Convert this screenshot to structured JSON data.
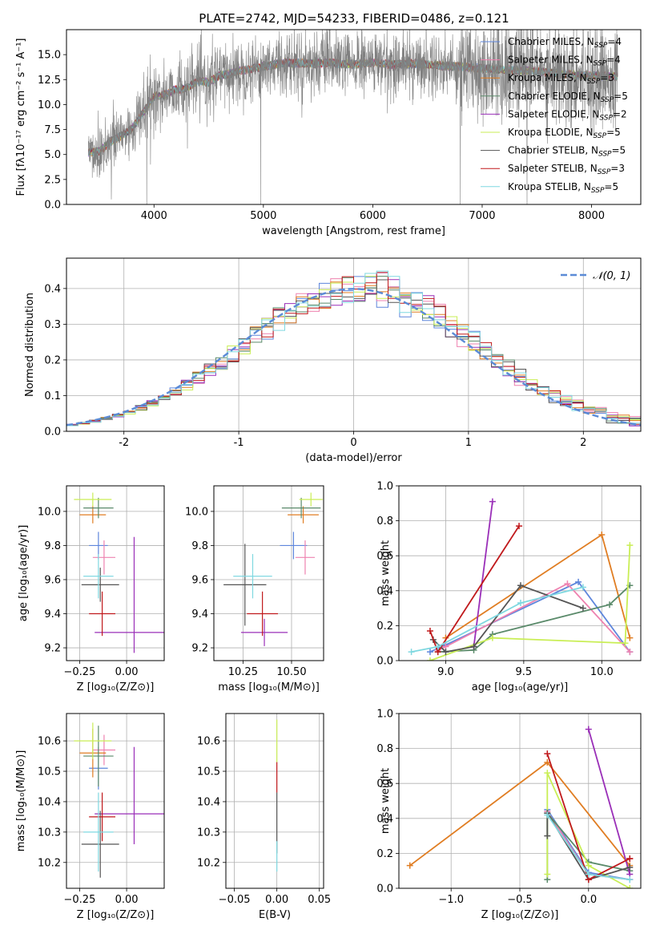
{
  "figure": {
    "title": "PLATE=2742, MJD=54233, FIBERID=0486, z=0.121",
    "background": "#ffffff",
    "grid_color": "#b0b0b0"
  },
  "colors": {
    "chabrier_miles": "#5e86dc",
    "salpeter_miles": "#ee82b0",
    "kroupa_miles": "#e07d22",
    "chabrier_elodie": "#5a8a6a",
    "salpeter_elodie": "#9a2fb8",
    "kroupa_elodie": "#c9ee55",
    "chabrier_stelib": "#555555",
    "salpeter_stelib": "#c0191c",
    "kroupa_stelib": "#7fd8e0",
    "spectrum": "#808080",
    "gaussian": "#5b8bd6"
  },
  "chart_data": [
    {
      "id": "spectrum",
      "type": "line",
      "xlabel": "wavelength [Angstrom, rest frame]",
      "ylabel": "Flux [fλ10⁻¹⁷ erg cm⁻² s⁻¹ A⁻¹]",
      "xlim": [
        3200,
        8450
      ],
      "ylim": [
        0,
        17.5
      ],
      "xticks": [
        4000,
        5000,
        6000,
        7000,
        8000
      ],
      "yticks": [
        0.0,
        2.5,
        5.0,
        7.5,
        10.0,
        12.5,
        15.0
      ],
      "grid": false,
      "legend_position": "upper right",
      "data_continuum": {
        "x": [
          3400,
          3500,
          3600,
          3700,
          3800,
          3900,
          4000,
          4100,
          4200,
          4300,
          4400,
          4500,
          4600,
          4700,
          4800,
          4900,
          5000,
          5200,
          5400,
          5600,
          5800,
          6000,
          6200,
          6400,
          6600,
          6800,
          7000,
          7200,
          7400,
          7600,
          7800,
          8000,
          8200
        ],
        "y": [
          5.2,
          5.3,
          6.3,
          6.9,
          7.6,
          9.2,
          10.8,
          11.0,
          11.5,
          11.6,
          12.4,
          12.2,
          12.9,
          13.1,
          13.4,
          13.6,
          13.8,
          14.2,
          14.1,
          14.2,
          14.0,
          14.2,
          14.0,
          14.1,
          13.9,
          13.8,
          13.6,
          13.5,
          13.4,
          13.2,
          13.0,
          12.9,
          12.8
        ]
      },
      "data_noise_amplitude": 1.6,
      "data_dips": [
        [
          3934,
          0
        ],
        [
          4975,
          0
        ],
        [
          6800,
          0
        ],
        [
          7410,
          0
        ],
        [
          3610,
          0.5
        ],
        [
          4305,
          5.6
        ],
        [
          3968,
          4.0
        ]
      ],
      "legend": [
        {
          "label": "Chabrier MILES, N",
          "sub": "SSP",
          "value": "=4",
          "color_key": "chabrier_miles"
        },
        {
          "label": "Salpeter MILES, N",
          "sub": "SSP",
          "value": "=4",
          "color_key": "salpeter_miles"
        },
        {
          "label": "Kroupa MILES, N",
          "sub": "SSP",
          "value": "=3",
          "color_key": "kroupa_miles"
        },
        {
          "label": "Chabrier ELODIE, N",
          "sub": "SSP",
          "value": "=5",
          "color_key": "chabrier_elodie"
        },
        {
          "label": "Salpeter ELODIE, N",
          "sub": "SSP",
          "value": "=2",
          "color_key": "salpeter_elodie"
        },
        {
          "label": "Kroupa ELODIE, N",
          "sub": "SSP",
          "value": "=5",
          "color_key": "kroupa_elodie"
        },
        {
          "label": "Chabrier STELIB, N",
          "sub": "SSP",
          "value": "=5",
          "color_key": "chabrier_stelib"
        },
        {
          "label": "Salpeter STELIB, N",
          "sub": "SSP",
          "value": "=3",
          "color_key": "salpeter_stelib"
        },
        {
          "label": "Kroupa STELIB, N",
          "sub": "SSP",
          "value": "=5",
          "color_key": "kroupa_stelib"
        }
      ]
    },
    {
      "id": "residual_histogram",
      "type": "line",
      "xlabel": "(data-model)/error",
      "ylabel": "Normed distribution",
      "xlim": [
        -2.5,
        2.5
      ],
      "ylim": [
        0,
        0.485
      ],
      "xticks": [
        -2,
        -1,
        0,
        1,
        2
      ],
      "yticks": [
        0.0,
        0.1,
        0.2,
        0.3,
        0.4
      ],
      "grid": true,
      "legend_position": "upper right",
      "legend_label": "𝒩(0, 1)",
      "gaussian": {
        "mean": 0,
        "sigma": 1
      },
      "bin_width": 0.1
    },
    {
      "id": "age_vs_Z",
      "type": "scatter",
      "xlabel": "Z [log₁₀(Z/Z⊙)]",
      "ylabel": "age  [log₁₀(age/yr)]",
      "xlim": [
        -0.32,
        0.2
      ],
      "ylim": [
        9.125,
        10.15
      ],
      "xticks": [
        -0.25,
        0.0
      ],
      "xticklabels": [
        "−0.25",
        "0.00"
      ],
      "yticks": [
        9.2,
        9.4,
        9.6,
        9.8,
        10.0
      ],
      "grid": true,
      "points": [
        {
          "key": "chabrier_miles",
          "x": -0.15,
          "xerr": 0.05,
          "y": 9.8,
          "yerr": 0.08
        },
        {
          "key": "salpeter_miles",
          "x": -0.12,
          "xerr": 0.06,
          "y": 9.73,
          "yerr": 0.1
        },
        {
          "key": "kroupa_miles",
          "x": -0.18,
          "xerr": 0.07,
          "y": 9.98,
          "yerr": 0.05
        },
        {
          "key": "chabrier_elodie",
          "x": -0.15,
          "xerr": 0.08,
          "y": 10.02,
          "yerr": 0.06
        },
        {
          "key": "salpeter_elodie",
          "x": 0.03,
          "xerr": 0.2,
          "y": 9.29,
          "yerr": 0.0
        },
        {
          "key": "kroupa_elodie",
          "x": -0.18,
          "xerr": 0.1,
          "y": 10.07,
          "yerr": 0.04
        },
        {
          "key": "chabrier_stelib",
          "x": -0.14,
          "xerr": 0.1,
          "y": 9.57,
          "yerr": 0.1
        },
        {
          "key": "salpeter_stelib",
          "x": -0.13,
          "xerr": 0.07,
          "y": 9.4,
          "yerr": 0.13
        },
        {
          "key": "kroupa_stelib",
          "x": -0.15,
          "xerr": 0.08,
          "y": 9.62,
          "yerr": 0.13
        },
        {
          "key": "salpeter_elodie",
          "x": 0.04,
          "xerr": 0.0,
          "y": 9.51,
          "yerr": 0.34
        }
      ]
    },
    {
      "id": "age_vs_mass",
      "type": "scatter",
      "xlabel": "mass [log₁₀(M/M⊙)]",
      "ylabel": "",
      "xlim": [
        10.1,
        10.665
      ],
      "ylim": [
        9.125,
        10.15
      ],
      "xticks": [
        10.25,
        10.5
      ],
      "xticklabels": [
        "10.25",
        "10.50"
      ],
      "yticks": [
        9.2,
        9.4,
        9.6,
        9.8,
        10.0
      ],
      "grid": true,
      "points": [
        {
          "key": "chabrier_miles",
          "x": 10.51,
          "xerr": 0.07,
          "y": 9.8,
          "yerr": 0.08
        },
        {
          "key": "salpeter_miles",
          "x": 10.57,
          "xerr": 0.05,
          "y": 9.73,
          "yerr": 0.1
        },
        {
          "key": "kroupa_miles",
          "x": 10.56,
          "xerr": 0.08,
          "y": 9.98,
          "yerr": 0.05
        },
        {
          "key": "chabrier_elodie",
          "x": 10.55,
          "xerr": 0.1,
          "y": 10.02,
          "yerr": 0.06
        },
        {
          "key": "salpeter_elodie",
          "x": 10.36,
          "xerr": 0.12,
          "y": 9.29,
          "yerr": 0.08
        },
        {
          "key": "kroupa_elodie",
          "x": 10.6,
          "xerr": 0.06,
          "y": 10.07,
          "yerr": 0.04
        },
        {
          "key": "chabrier_stelib",
          "x": 10.26,
          "xerr": 0.11,
          "y": 9.57,
          "yerr": 0.24
        },
        {
          "key": "salpeter_stelib",
          "x": 10.35,
          "xerr": 0.08,
          "y": 9.4,
          "yerr": 0.13
        },
        {
          "key": "kroupa_stelib",
          "x": 10.3,
          "xerr": 0.1,
          "y": 9.62,
          "yerr": 0.13
        }
      ]
    },
    {
      "id": "weight_vs_age",
      "type": "line",
      "xlabel": "age  [log₁₀(age/yr)]",
      "ylabel": "mass weight",
      "xlim": [
        8.7,
        10.25
      ],
      "ylim": [
        0,
        1.0
      ],
      "xticks": [
        9.0,
        9.5,
        10.0
      ],
      "yticks": [
        0.0,
        0.2,
        0.4,
        0.6,
        0.8,
        1.0
      ],
      "grid": true,
      "series": [
        {
          "key": "chabrier_miles",
          "x": [
            8.9,
            9.0,
            9.85,
            10.18
          ],
          "y": [
            0.05,
            0.09,
            0.45,
            0.05
          ]
        },
        {
          "key": "salpeter_miles",
          "x": [
            8.95,
            9.0,
            9.78,
            10.18
          ],
          "y": [
            0.06,
            0.08,
            0.44,
            0.05
          ]
        },
        {
          "key": "kroupa_miles",
          "x": [
            9.0,
            10.0,
            10.18
          ],
          "y": [
            0.13,
            0.72,
            0.13
          ]
        },
        {
          "key": "chabrier_elodie",
          "x": [
            8.95,
            9.18,
            9.3,
            10.05,
            10.18
          ],
          "y": [
            0.05,
            0.06,
            0.15,
            0.32,
            0.43
          ]
        },
        {
          "key": "salpeter_elodie",
          "x": [
            9.18,
            9.3
          ],
          "y": [
            0.08,
            0.91
          ]
        },
        {
          "key": "kroupa_elodie",
          "x": [
            8.9,
            9.3,
            10.15,
            10.18
          ],
          "y": [
            0.0,
            0.13,
            0.1,
            0.66
          ]
        },
        {
          "key": "chabrier_stelib",
          "x": [
            8.92,
            9.0,
            9.18,
            9.48,
            9.88
          ],
          "y": [
            0.12,
            0.05,
            0.08,
            0.43,
            0.3
          ]
        },
        {
          "key": "salpeter_stelib",
          "x": [
            8.9,
            8.95,
            9.47
          ],
          "y": [
            0.17,
            0.05,
            0.77
          ]
        },
        {
          "key": "kroupa_stelib",
          "x": [
            8.78,
            8.95,
            9.48,
            9.88
          ],
          "y": [
            0.05,
            0.08,
            0.33,
            0.42
          ]
        }
      ]
    },
    {
      "id": "mass_vs_Z",
      "type": "scatter",
      "xlabel": "Z [log₁₀(Z/Z⊙)]",
      "ylabel": "mass [log₁₀(M/M⊙)]",
      "xlim": [
        -0.32,
        0.2
      ],
      "ylim": [
        10.115,
        10.69
      ],
      "xticks": [
        -0.25,
        0.0
      ],
      "xticklabels": [
        "−0.25",
        "0.00"
      ],
      "yticks": [
        10.2,
        10.3,
        10.4,
        10.5,
        10.6
      ],
      "grid": true,
      "points": [
        {
          "key": "chabrier_miles",
          "x": -0.15,
          "xerr": 0.05,
          "y": 10.51,
          "yerr": 0.07
        },
        {
          "key": "salpeter_miles",
          "x": -0.12,
          "xerr": 0.06,
          "y": 10.57,
          "yerr": 0.05
        },
        {
          "key": "kroupa_miles",
          "x": -0.18,
          "xerr": 0.07,
          "y": 10.56,
          "yerr": 0.08
        },
        {
          "key": "chabrier_elodie",
          "x": -0.15,
          "xerr": 0.08,
          "y": 10.55,
          "yerr": 0.1
        },
        {
          "key": "salpeter_elodie",
          "x": 0.03,
          "xerr": 0.2,
          "y": 10.36,
          "yerr": 0.0
        },
        {
          "key": "kroupa_elodie",
          "x": -0.18,
          "xerr": 0.1,
          "y": 10.6,
          "yerr": 0.06
        },
        {
          "key": "chabrier_stelib",
          "x": -0.14,
          "xerr": 0.1,
          "y": 10.26,
          "yerr": 0.11
        },
        {
          "key": "salpeter_stelib",
          "x": -0.13,
          "xerr": 0.07,
          "y": 10.35,
          "yerr": 0.08
        },
        {
          "key": "kroupa_stelib",
          "x": -0.15,
          "xerr": 0.08,
          "y": 10.3,
          "yerr": 0.13
        },
        {
          "key": "salpeter_elodie",
          "x": 0.04,
          "xerr": 0.0,
          "y": 10.42,
          "yerr": 0.16
        }
      ]
    },
    {
      "id": "mass_vs_ebv",
      "type": "scatter",
      "xlabel": "E(B-V)",
      "ylabel": "",
      "xlim": [
        -0.06,
        0.055
      ],
      "ylim": [
        10.115,
        10.69
      ],
      "xticks": [
        -0.05,
        0.0,
        0.05
      ],
      "xticklabels": [
        "−0.05",
        "0.00",
        "0.05"
      ],
      "yticks": [
        10.2,
        10.3,
        10.4,
        10.5,
        10.6
      ],
      "grid": true,
      "points": [
        {
          "key": "kroupa_elodie",
          "x": 0.0,
          "xerr": 0.0,
          "y": 10.6,
          "yerr": 0.07
        },
        {
          "key": "salpeter_stelib",
          "x": 0.0,
          "xerr": 0.0,
          "y": 10.48,
          "yerr": 0.05
        },
        {
          "key": "chabrier_stelib",
          "x": 0.0,
          "xerr": 0.0,
          "y": 10.33,
          "yerr": 0.1
        },
        {
          "key": "kroupa_stelib",
          "x": 0.0,
          "xerr": 0.0,
          "y": 10.22,
          "yerr": 0.05
        }
      ]
    },
    {
      "id": "weight_vs_Z",
      "type": "line",
      "xlabel": "Z [log₁₀(Z/Z⊙)]",
      "ylabel": "mass weight",
      "xlim": [
        -1.38,
        0.38
      ],
      "ylim": [
        0,
        1.0
      ],
      "xticks": [
        -1.0,
        -0.5,
        0.0
      ],
      "xticklabels": [
        "−1.0",
        "−0.5",
        "0.0"
      ],
      "yticks": [
        0.0,
        0.2,
        0.4,
        0.6,
        0.8,
        1.0
      ],
      "grid": true,
      "series": [
        {
          "key": "chabrier_miles",
          "x": [
            -0.3,
            0.0,
            0.3
          ],
          "y": [
            0.45,
            0.09,
            0.05
          ]
        },
        {
          "key": "salpeter_miles",
          "x": [
            -0.3,
            0.0,
            0.3
          ],
          "y": [
            0.44,
            0.08,
            0.05
          ]
        },
        {
          "key": "kroupa_miles",
          "x": [
            -1.3,
            -0.3,
            0.3
          ],
          "y": [
            0.13,
            0.72,
            0.13
          ]
        },
        {
          "key": "chabrier_elodie",
          "x": [
            -0.3,
            -0.3,
            0.0,
            0.3
          ],
          "y": [
            0.05,
            0.43,
            0.15,
            0.1
          ]
        },
        {
          "key": "salpeter_elodie",
          "x": [
            0.0,
            0.3
          ],
          "y": [
            0.91,
            0.08
          ]
        },
        {
          "key": "kroupa_elodie",
          "x": [
            -0.3,
            -0.3,
            0.0,
            0.3
          ],
          "y": [
            0.08,
            0.66,
            0.13,
            0.0
          ]
        },
        {
          "key": "chabrier_stelib",
          "x": [
            -0.3,
            -0.3,
            0.0,
            0.3
          ],
          "y": [
            0.3,
            0.43,
            0.05,
            0.12
          ]
        },
        {
          "key": "salpeter_stelib",
          "x": [
            -0.3,
            0.0,
            0.3,
            0.3
          ],
          "y": [
            0.77,
            0.05,
            0.17,
            0.17
          ]
        },
        {
          "key": "kroupa_stelib",
          "x": [
            -0.3,
            0.0,
            0.3
          ],
          "y": [
            0.42,
            0.08,
            0.05
          ]
        }
      ]
    }
  ]
}
